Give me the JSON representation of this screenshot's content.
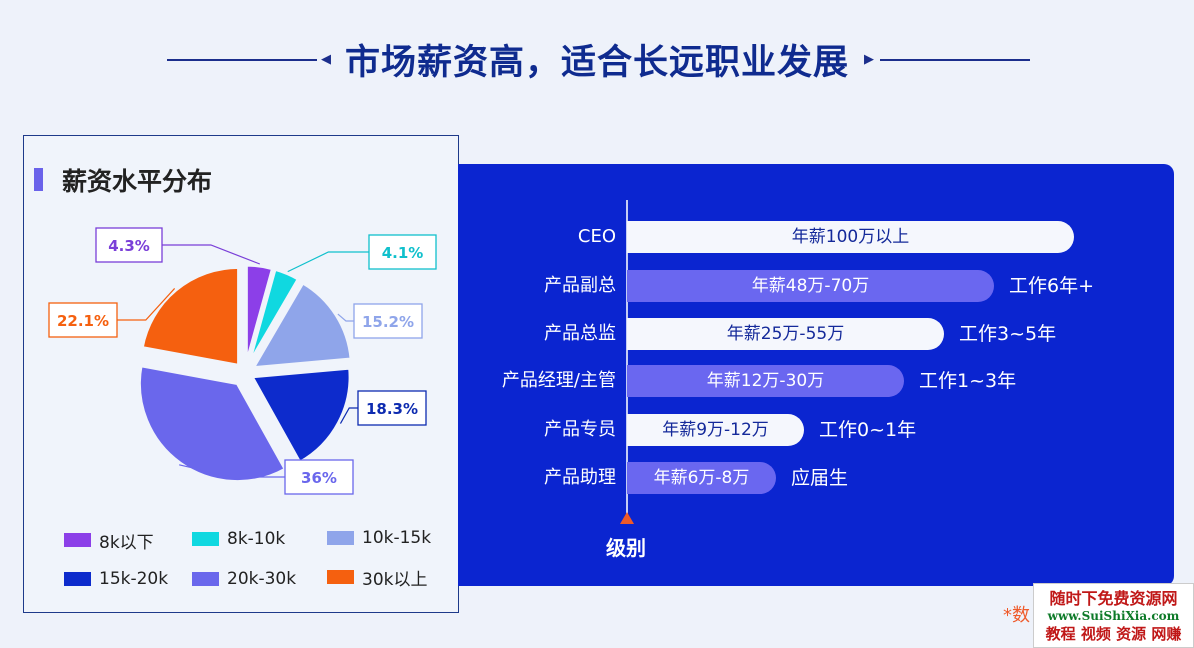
{
  "header": {
    "title": "市场薪资高，适合长远职业发展"
  },
  "left_panel": {
    "title": "薪资水平分布"
  },
  "right_panel": {
    "axis_label": "级别"
  },
  "footnote": "*数",
  "watermark": {
    "line1": "随时下免费资源网",
    "line2": "www.SuiShiXia.com",
    "line3": "教程 视频 资源 网赚"
  },
  "colors": {
    "background": "#eef2fa",
    "title": "#0f2b8f",
    "panel_blue": "#0b25d0",
    "bar_light": "#f5f7fd",
    "bar_purple": "#6a67f0",
    "arrow_orange": "#f05a28"
  },
  "chart_data": [
    {
      "type": "pie",
      "title": "薪资水平分布",
      "legend_placement": "bottom",
      "categories": [
        "8k以下",
        "8k-10k",
        "10k-15k",
        "15k-20k",
        "20k-30k",
        "30k以上"
      ],
      "values": [
        4.3,
        4.1,
        15.2,
        18.3,
        36,
        22.1
      ],
      "labels": [
        "4.3%",
        "4.1%",
        "15.2%",
        "18.3%",
        "36%",
        "22.1%"
      ],
      "colors": [
        "#8c3fe8",
        "#10d8e0",
        "#8fa5ea",
        "#0d2bcc",
        "#6a67ec",
        "#f5600f"
      ]
    },
    {
      "type": "bar",
      "orientation": "horizontal",
      "categories": [
        "CEO",
        "产品副总",
        "产品总监",
        "产品经理/主管",
        "产品专员",
        "产品助理"
      ],
      "bar_labels": [
        "年薪100万以上",
        "年薪48万-70万",
        "年薪25万-55万",
        "年薪12万-30万",
        "年薪9万-12万",
        "年薪6万-8万"
      ],
      "values": [
        100,
        70,
        55,
        30,
        12,
        8
      ],
      "experience": [
        "",
        "工作6年+",
        "工作3~5年",
        "工作1~3年",
        "工作0~1年",
        "应届生"
      ],
      "axis_label": "级别"
    }
  ]
}
